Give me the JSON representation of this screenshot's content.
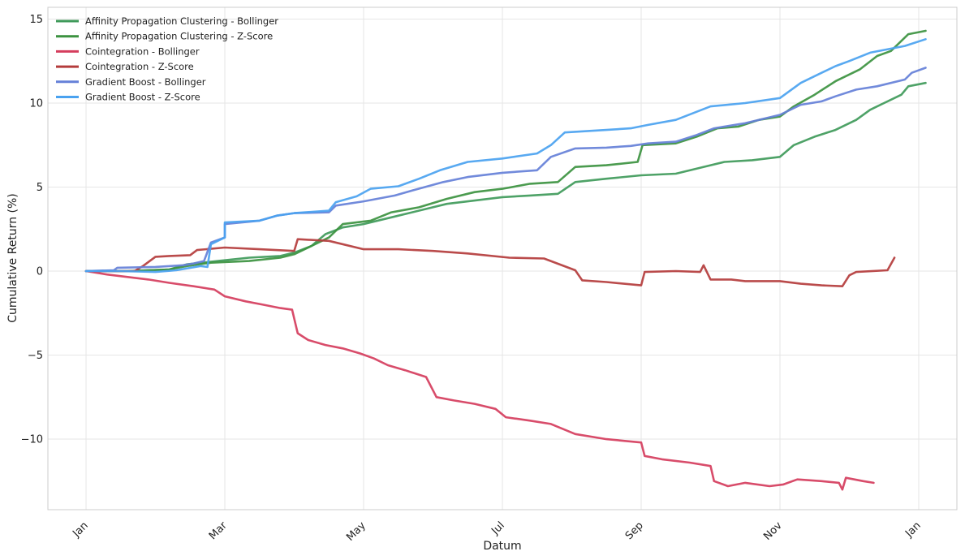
{
  "chart_data": {
    "type": "line",
    "title": "",
    "xlabel": "Datum",
    "ylabel": "Cumulative Return (%)",
    "x_unit": "month (Jan = 0, next Jan = 12)",
    "xlim": [
      -0.55,
      12.55
    ],
    "ylim": [
      -14.2,
      15.7
    ],
    "x_ticks": [
      {
        "value": 0,
        "label": "Jan"
      },
      {
        "value": 2,
        "label": "Mar"
      },
      {
        "value": 4,
        "label": "May"
      },
      {
        "value": 6,
        "label": "Jul"
      },
      {
        "value": 8,
        "label": "Sep"
      },
      {
        "value": 10,
        "label": "Nov"
      },
      {
        "value": 12,
        "label": "Jan"
      }
    ],
    "y_ticks": [
      {
        "value": 15,
        "label": "15"
      },
      {
        "value": 10,
        "label": "10"
      },
      {
        "value": 5,
        "label": "5"
      },
      {
        "value": 0,
        "label": "0"
      },
      {
        "value": -5,
        "label": "−5"
      },
      {
        "value": -10,
        "label": "−10"
      }
    ],
    "grid": true,
    "legend_position": "top-left",
    "series": [
      {
        "name": "Affinity Propagation Clustering - Bollinger",
        "color": "#3f9a5a",
        "points": [
          [
            0,
            0
          ],
          [
            0.6,
            0
          ],
          [
            1.2,
            0.1
          ],
          [
            1.45,
            0.4
          ],
          [
            1.9,
            0.6
          ],
          [
            2.35,
            0.8
          ],
          [
            2.8,
            0.9
          ],
          [
            3,
            1.1
          ],
          [
            3.25,
            1.5
          ],
          [
            3.45,
            2.2
          ],
          [
            3.7,
            2.6
          ],
          [
            4,
            2.8
          ],
          [
            4.4,
            3.2
          ],
          [
            4.8,
            3.6
          ],
          [
            5.2,
            4
          ],
          [
            5.6,
            4.2
          ],
          [
            6,
            4.4
          ],
          [
            6.4,
            4.5
          ],
          [
            6.8,
            4.6
          ],
          [
            7.05,
            5.3
          ],
          [
            7.5,
            5.5
          ],
          [
            8,
            5.7
          ],
          [
            8.5,
            5.8
          ],
          [
            9,
            6.3
          ],
          [
            9.2,
            6.5
          ],
          [
            9.6,
            6.6
          ],
          [
            10,
            6.8
          ],
          [
            10.2,
            7.5
          ],
          [
            10.5,
            8
          ],
          [
            10.8,
            8.4
          ],
          [
            11.1,
            9
          ],
          [
            11.3,
            9.6
          ],
          [
            11.5,
            10
          ],
          [
            11.75,
            10.5
          ],
          [
            11.85,
            11
          ],
          [
            12.1,
            11.2
          ]
        ]
      },
      {
        "name": "Affinity Propagation Clustering - Z-Score",
        "color": "#3c9240",
        "points": [
          [
            0,
            0
          ],
          [
            0.6,
            0
          ],
          [
            1.2,
            0.1
          ],
          [
            1.45,
            0.3
          ],
          [
            1.8,
            0.5
          ],
          [
            2.35,
            0.6
          ],
          [
            2.8,
            0.8
          ],
          [
            3,
            1
          ],
          [
            3.25,
            1.5
          ],
          [
            3.5,
            2
          ],
          [
            3.7,
            2.8
          ],
          [
            4.1,
            3
          ],
          [
            4.4,
            3.5
          ],
          [
            4.8,
            3.8
          ],
          [
            5.2,
            4.3
          ],
          [
            5.6,
            4.7
          ],
          [
            6,
            4.9
          ],
          [
            6.4,
            5.2
          ],
          [
            6.8,
            5.3
          ],
          [
            7.05,
            6.2
          ],
          [
            7.5,
            6.3
          ],
          [
            7.95,
            6.5
          ],
          [
            8.02,
            7.5
          ],
          [
            8.5,
            7.6
          ],
          [
            8.8,
            8
          ],
          [
            9.1,
            8.5
          ],
          [
            9.4,
            8.6
          ],
          [
            9.7,
            9
          ],
          [
            10,
            9.2
          ],
          [
            10.2,
            9.8
          ],
          [
            10.5,
            10.5
          ],
          [
            10.8,
            11.3
          ],
          [
            11.15,
            12
          ],
          [
            11.4,
            12.8
          ],
          [
            11.6,
            13.1
          ],
          [
            11.85,
            14.1
          ],
          [
            12.1,
            14.3
          ]
        ]
      },
      {
        "name": "Cointegration - Bollinger",
        "color": "#d53d5d",
        "points": [
          [
            0,
            0
          ],
          [
            0.3,
            -0.2
          ],
          [
            0.6,
            -0.35
          ],
          [
            0.9,
            -0.5
          ],
          [
            1.2,
            -0.7
          ],
          [
            1.55,
            -0.9
          ],
          [
            1.85,
            -1.1
          ],
          [
            2,
            -1.5
          ],
          [
            2.3,
            -1.8
          ],
          [
            2.55,
            -2
          ],
          [
            2.8,
            -2.2
          ],
          [
            2.97,
            -2.3
          ],
          [
            3.05,
            -3.7
          ],
          [
            3.2,
            -4.1
          ],
          [
            3.45,
            -4.4
          ],
          [
            3.7,
            -4.6
          ],
          [
            3.95,
            -4.9
          ],
          [
            4.15,
            -5.2
          ],
          [
            4.35,
            -5.6
          ],
          [
            4.6,
            -5.9
          ],
          [
            4.9,
            -6.3
          ],
          [
            5.05,
            -7.5
          ],
          [
            5.3,
            -7.7
          ],
          [
            5.6,
            -7.9
          ],
          [
            5.9,
            -8.2
          ],
          [
            6.05,
            -8.7
          ],
          [
            6.4,
            -8.9
          ],
          [
            6.7,
            -9.1
          ],
          [
            7.05,
            -9.7
          ],
          [
            7.5,
            -10
          ],
          [
            8,
            -10.2
          ],
          [
            8.05,
            -11
          ],
          [
            8.3,
            -11.2
          ],
          [
            8.7,
            -11.4
          ],
          [
            9,
            -11.6
          ],
          [
            9.05,
            -12.5
          ],
          [
            9.25,
            -12.8
          ],
          [
            9.5,
            -12.6
          ],
          [
            9.85,
            -12.8
          ],
          [
            10.05,
            -12.7
          ],
          [
            10.25,
            -12.4
          ],
          [
            10.6,
            -12.5
          ],
          [
            10.85,
            -12.6
          ],
          [
            10.9,
            -13
          ],
          [
            10.95,
            -12.3
          ],
          [
            11.2,
            -12.5
          ],
          [
            11.35,
            -12.6
          ]
        ]
      },
      {
        "name": "Cointegration - Z-Score",
        "color": "#b43c3c",
        "points": [
          [
            0,
            0
          ],
          [
            0.7,
            0
          ],
          [
            0.82,
            0.3
          ],
          [
            1,
            0.85
          ],
          [
            1.2,
            0.9
          ],
          [
            1.5,
            0.95
          ],
          [
            1.6,
            1.25
          ],
          [
            2,
            1.4
          ],
          [
            2.5,
            1.3
          ],
          [
            3,
            1.2
          ],
          [
            3.05,
            1.9
          ],
          [
            3.5,
            1.8
          ],
          [
            4,
            1.3
          ],
          [
            4.5,
            1.3
          ],
          [
            5,
            1.2
          ],
          [
            5.5,
            1.05
          ],
          [
            6.1,
            0.8
          ],
          [
            6.6,
            0.75
          ],
          [
            7.05,
            0.05
          ],
          [
            7.15,
            -0.55
          ],
          [
            7.5,
            -0.65
          ],
          [
            8,
            -0.85
          ],
          [
            8.05,
            -0.05
          ],
          [
            8.5,
            0
          ],
          [
            8.85,
            -0.05
          ],
          [
            8.9,
            0.35
          ],
          [
            9,
            -0.5
          ],
          [
            9.3,
            -0.5
          ],
          [
            9.5,
            -0.6
          ],
          [
            10,
            -0.6
          ],
          [
            10.3,
            -0.75
          ],
          [
            10.6,
            -0.85
          ],
          [
            10.9,
            -0.9
          ],
          [
            11,
            -0.25
          ],
          [
            11.1,
            -0.05
          ],
          [
            11.55,
            0.05
          ],
          [
            11.65,
            0.8
          ]
        ]
      },
      {
        "name": "Gradient Boost - Bollinger",
        "color": "#6580d8",
        "points": [
          [
            0,
            0
          ],
          [
            0.4,
            0.05
          ],
          [
            0.45,
            0.2
          ],
          [
            1,
            0.25
          ],
          [
            1.4,
            0.35
          ],
          [
            1.55,
            0.45
          ],
          [
            1.7,
            0.6
          ],
          [
            1.8,
            1.7
          ],
          [
            2,
            2
          ],
          [
            2,
            2.8
          ],
          [
            2.5,
            3
          ],
          [
            2.75,
            3.3
          ],
          [
            3,
            3.45
          ],
          [
            3.5,
            3.5
          ],
          [
            3.6,
            3.9
          ],
          [
            4,
            4.15
          ],
          [
            4.45,
            4.5
          ],
          [
            4.7,
            4.8
          ],
          [
            5.15,
            5.3
          ],
          [
            5.5,
            5.6
          ],
          [
            6,
            5.85
          ],
          [
            6.5,
            6
          ],
          [
            6.7,
            6.8
          ],
          [
            7.05,
            7.3
          ],
          [
            7.5,
            7.35
          ],
          [
            7.85,
            7.45
          ],
          [
            8.1,
            7.6
          ],
          [
            8.5,
            7.7
          ],
          [
            8.8,
            8.1
          ],
          [
            9.05,
            8.5
          ],
          [
            9.5,
            8.8
          ],
          [
            10,
            9.3
          ],
          [
            10.3,
            9.9
          ],
          [
            10.6,
            10.1
          ],
          [
            10.8,
            10.4
          ],
          [
            11.1,
            10.8
          ],
          [
            11.4,
            11
          ],
          [
            11.8,
            11.4
          ],
          [
            11.9,
            11.8
          ],
          [
            12.1,
            12.1
          ]
        ]
      },
      {
        "name": "Gradient Boost - Z-Score",
        "color": "#4aa2f0",
        "points": [
          [
            0,
            0
          ],
          [
            0.5,
            0
          ],
          [
            1,
            -0.05
          ],
          [
            1.3,
            0.05
          ],
          [
            1.65,
            0.3
          ],
          [
            1.75,
            0.25
          ],
          [
            1.8,
            1.6
          ],
          [
            2,
            2
          ],
          [
            2,
            2.9
          ],
          [
            2.5,
            3
          ],
          [
            2.75,
            3.3
          ],
          [
            3,
            3.45
          ],
          [
            3.5,
            3.6
          ],
          [
            3.6,
            4.1
          ],
          [
            3.9,
            4.45
          ],
          [
            4.1,
            4.9
          ],
          [
            4.5,
            5.05
          ],
          [
            4.8,
            5.5
          ],
          [
            5.1,
            6
          ],
          [
            5.5,
            6.5
          ],
          [
            6,
            6.7
          ],
          [
            6.5,
            7
          ],
          [
            6.7,
            7.5
          ],
          [
            6.9,
            8.25
          ],
          [
            7.5,
            8.4
          ],
          [
            7.85,
            8.5
          ],
          [
            8.1,
            8.7
          ],
          [
            8.5,
            9
          ],
          [
            9,
            9.8
          ],
          [
            9.5,
            10
          ],
          [
            10,
            10.3
          ],
          [
            10.3,
            11.2
          ],
          [
            10.6,
            11.8
          ],
          [
            10.8,
            12.2
          ],
          [
            11,
            12.5
          ],
          [
            11.3,
            13
          ],
          [
            11.8,
            13.4
          ],
          [
            12.1,
            13.8
          ]
        ]
      }
    ]
  }
}
